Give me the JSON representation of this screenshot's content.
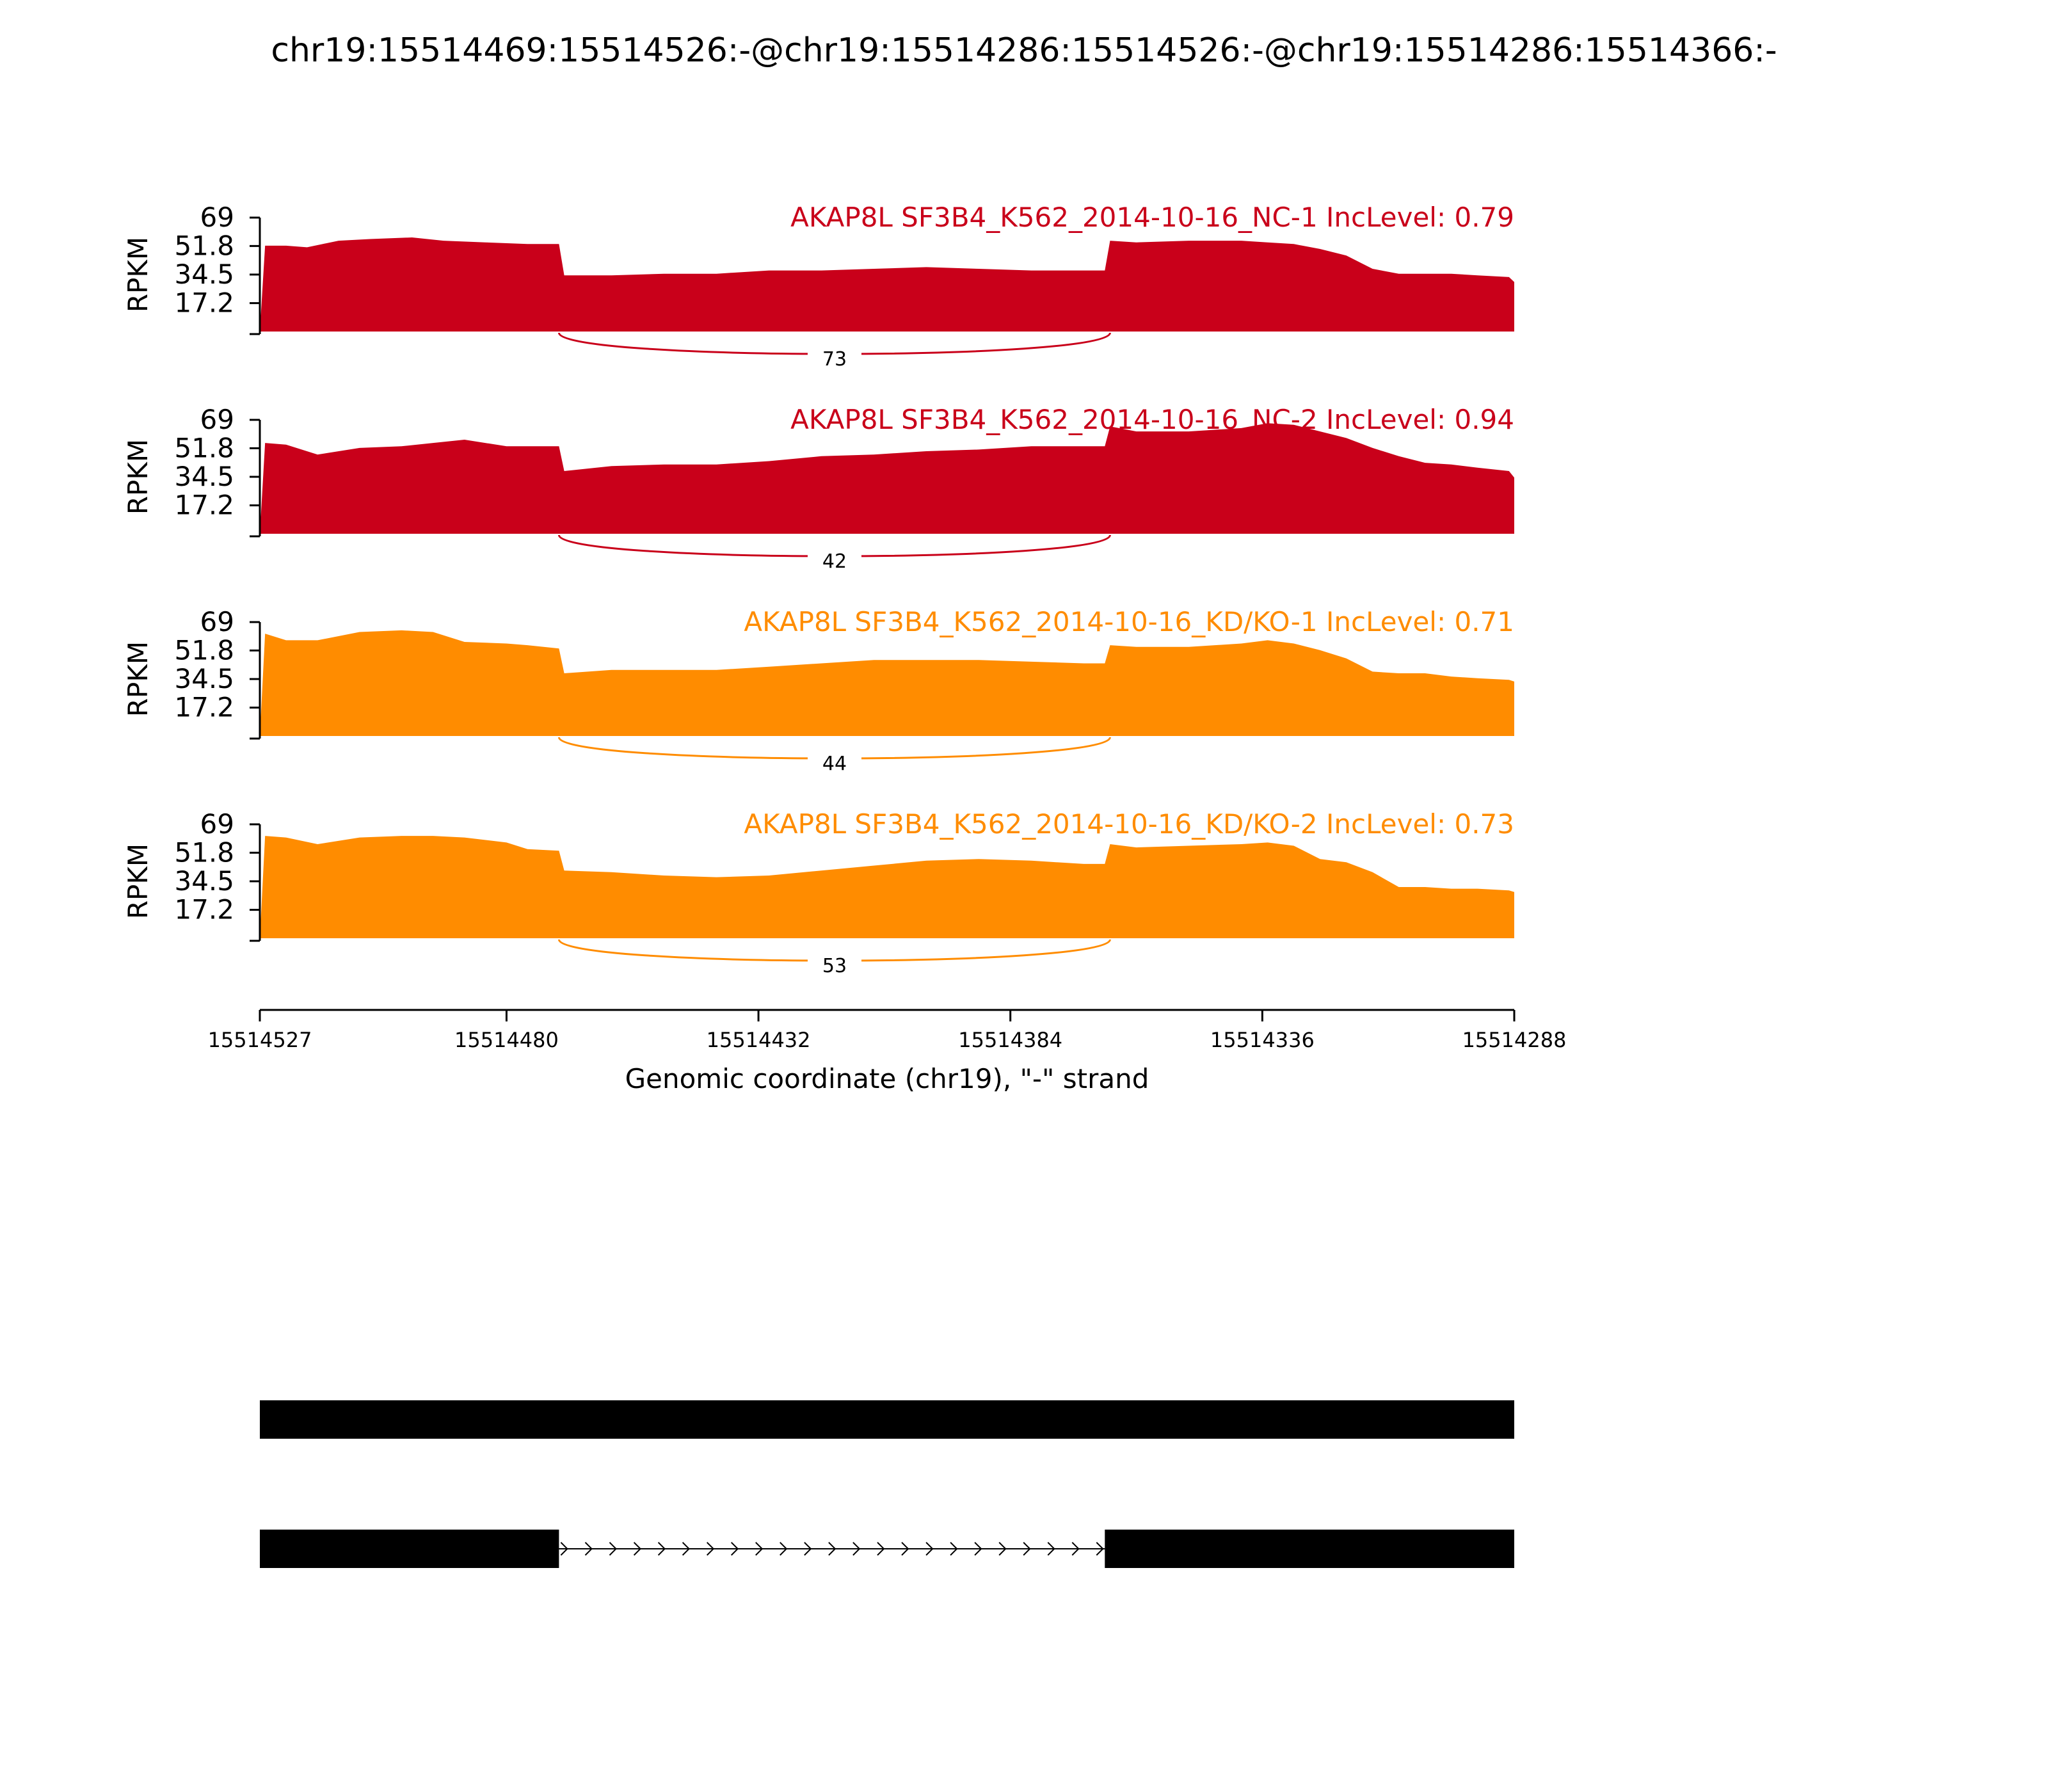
{
  "chart_data": {
    "type": "area",
    "title": "chr19:15514469:15514526:-@chr19:15514286:15514526:-@chr19:15514286:15514366:-",
    "xlabel": "Genomic coordinate (chr19), \"-\" strand",
    "ylabel": "RPKM",
    "x_range": [
      15514527,
      15514288
    ],
    "x_ticks": [
      15514527,
      15514480,
      15514432,
      15514384,
      15514336,
      15514288
    ],
    "y_range": [
      0,
      69
    ],
    "y_ticks": [
      17.2,
      34.5,
      51.8,
      69
    ],
    "y_tick_labels": [
      "17.2",
      "34.5",
      "51.8",
      "69"
    ],
    "junction": {
      "start": 15514470,
      "end": 15514365
    },
    "series": [
      {
        "name": "AKAP8L SF3B4_K562_2014-10-16_NC-1 IncLevel: 0.79",
        "color": "#c9001a",
        "junction_count": "73",
        "x": [
          15514527,
          15514526,
          15514522,
          15514518,
          15514512,
          15514506,
          15514498,
          15514492,
          15514484,
          15514476,
          15514470,
          15514469,
          15514460,
          15514450,
          15514440,
          15514430,
          15514420,
          15514410,
          15514400,
          15514390,
          15514380,
          15514370,
          15514366,
          15514365,
          15514360,
          15514350,
          15514340,
          15514335,
          15514330,
          15514325,
          15514320,
          15514315,
          15514310,
          15514305,
          15514300,
          15514295,
          15514289,
          15514288
        ],
        "values": [
          0,
          52,
          52,
          51,
          55,
          56,
          57,
          55,
          54,
          53,
          53,
          34,
          34,
          35,
          35,
          37,
          37,
          38,
          39,
          38,
          37,
          37,
          37,
          55,
          54,
          55,
          55,
          54,
          53,
          50,
          46,
          38,
          35,
          35,
          35,
          34,
          33,
          30
        ]
      },
      {
        "name": "AKAP8L SF3B4_K562_2014-10-16_NC-2 IncLevel: 0.94",
        "color": "#c9001a",
        "junction_count": "42",
        "x": [
          15514527,
          15514526,
          15514522,
          15514516,
          15514508,
          15514500,
          15514494,
          15514488,
          15514480,
          15514476,
          15514470,
          15514469,
          15514460,
          15514450,
          15514440,
          15514430,
          15514420,
          15514410,
          15514400,
          15514390,
          15514380,
          15514370,
          15514366,
          15514365,
          15514360,
          15514350,
          15514340,
          15514335,
          15514330,
          15514325,
          15514320,
          15514315,
          15514310,
          15514305,
          15514300,
          15514295,
          15514289,
          15514288
        ],
        "values": [
          0,
          55,
          54,
          48,
          52,
          53,
          55,
          57,
          53,
          53,
          53,
          38,
          41,
          42,
          42,
          44,
          47,
          48,
          50,
          51,
          53,
          53,
          53,
          65,
          62,
          62,
          64,
          67,
          66,
          62,
          58,
          52,
          47,
          43,
          42,
          40,
          38,
          34
        ]
      },
      {
        "name": "AKAP8L SF3B4_K562_2014-10-16_KD/KO-1 IncLevel: 0.71",
        "color": "#ff8c00",
        "junction_count": "44",
        "x": [
          15514527,
          15514526,
          15514522,
          15514516,
          15514508,
          15514500,
          15514494,
          15514488,
          15514480,
          15514476,
          15514470,
          15514469,
          15514460,
          15514450,
          15514440,
          15514430,
          15514420,
          15514410,
          15514400,
          15514390,
          15514380,
          15514370,
          15514366,
          15514365,
          15514360,
          15514350,
          15514340,
          15514335,
          15514330,
          15514325,
          15514320,
          15514315,
          15514310,
          15514305,
          15514300,
          15514295,
          15514289,
          15514288
        ],
        "values": [
          0,
          62,
          58,
          58,
          63,
          64,
          63,
          57,
          56,
          55,
          53,
          38,
          40,
          40,
          40,
          42,
          44,
          46,
          46,
          46,
          45,
          44,
          44,
          55,
          54,
          54,
          56,
          58,
          56,
          52,
          47,
          39,
          38,
          38,
          36,
          35,
          34,
          33
        ]
      },
      {
        "name": "AKAP8L SF3B4_K562_2014-10-16_KD/KO-2 IncLevel: 0.73",
        "color": "#ff8c00",
        "junction_count": "53",
        "x": [
          15514527,
          15514526,
          15514522,
          15514516,
          15514508,
          15514500,
          15514494,
          15514488,
          15514480,
          15514476,
          15514470,
          15514469,
          15514460,
          15514450,
          15514440,
          15514430,
          15514420,
          15514410,
          15514400,
          15514390,
          15514380,
          15514370,
          15514366,
          15514365,
          15514360,
          15514350,
          15514340,
          15514335,
          15514330,
          15514325,
          15514320,
          15514315,
          15514310,
          15514305,
          15514300,
          15514295,
          15514289,
          15514288
        ],
        "values": [
          0,
          62,
          61,
          57,
          61,
          62,
          62,
          61,
          58,
          54,
          53,
          41,
          40,
          38,
          37,
          38,
          41,
          44,
          47,
          48,
          47,
          45,
          45,
          57,
          55,
          56,
          57,
          58,
          56,
          48,
          46,
          40,
          31,
          31,
          30,
          30,
          29,
          28
        ]
      }
    ],
    "gene_models": [
      {
        "exons": [
          [
            15514527,
            15514288
          ]
        ]
      },
      {
        "exons": [
          [
            15514527,
            15514470
          ],
          [
            15514366,
            15514288
          ]
        ]
      }
    ]
  }
}
